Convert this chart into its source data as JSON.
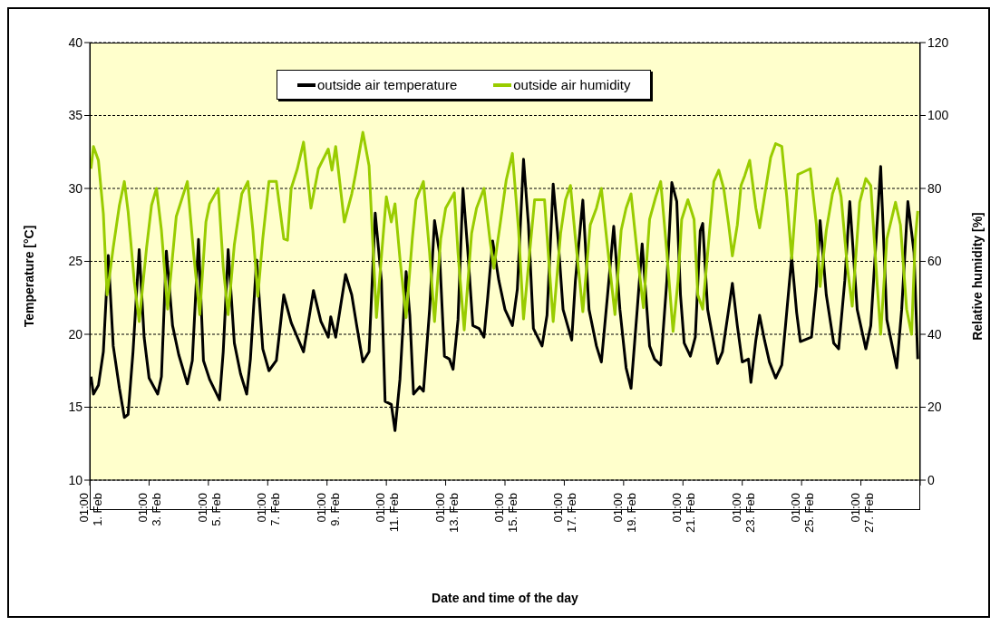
{
  "chart_data": {
    "type": "line",
    "xlabel": "Date and time of the day",
    "ylabel": "Temperature [°C]",
    "y2label": "Relative humidity [%]",
    "xlim": [
      "--02-01T01:00",
      "--03-01T01:00"
    ],
    "xticks": [
      {
        "value": "--02-01T01:00",
        "label": "01:00 1. Feb"
      },
      {
        "value": "--02-03T01:00",
        "label": "01:00 3. Feb"
      },
      {
        "value": "--02-05T01:00",
        "label": "01:00 5. Feb"
      },
      {
        "value": "--02-07T01:00",
        "label": "01:00 7. Feb"
      },
      {
        "value": "--02-09T01:00",
        "label": "01:00 9. Feb"
      },
      {
        "value": "--02-11T01:00",
        "label": "01:00 11. Feb"
      },
      {
        "value": "--02-13T01:00",
        "label": "01:00 13. Feb"
      },
      {
        "value": "--02-15T01:00",
        "label": "01:00 15. Feb"
      },
      {
        "value": "--02-17T01:00",
        "label": "01:00 17. Feb"
      },
      {
        "value": "--02-19T01:00",
        "label": "01:00 19. Feb"
      },
      {
        "value": "--02-21T01:00",
        "label": "01:00 21. Feb"
      },
      {
        "value": "--02-23T01:00",
        "label": "01:00 23. Feb"
      },
      {
        "value": "--02-25T01:00",
        "label": "01:00 25. Feb"
      },
      {
        "value": "--02-27T01:00",
        "label": "01:00 27. Feb"
      },
      {
        "value": "--03-01T01:00",
        "label": null
      }
    ],
    "ylim": [
      10,
      40
    ],
    "yticks": [
      10,
      15,
      20,
      25,
      30,
      35,
      40
    ],
    "y2lim": [
      0,
      120
    ],
    "y2ticks": [
      0,
      20,
      40,
      60,
      80,
      100,
      120
    ],
    "grid": "y",
    "legend": "top",
    "marker": "none",
    "line_style": "solid",
    "series": [
      {
        "name": "outside air temperature",
        "color": "#000000",
        "x": [
          "--02-01T02:00",
          "--02-01T04:00",
          "--02-01T08:00",
          "--02-01T12:00",
          "--02-01T16:00",
          "--02-01T20:00",
          "--02-02T01:00",
          "--02-02T05:00",
          "--02-02T08:00",
          "--02-02T12:00",
          "--02-02T17:00",
          "--02-02T21:00",
          "--02-03T01:00",
          "--02-03T08:00",
          "--02-03T11:00",
          "--02-03T15:00",
          "--02-03T20:00",
          "--02-04T01:00",
          "--02-04T08:00",
          "--02-04T12:00",
          "--02-04T17:00",
          "--02-04T21:00",
          "--02-05T02:00",
          "--02-05T10:00",
          "--02-05T13:00",
          "--02-05T17:00",
          "--02-05T22:00",
          "--02-06T03:00",
          "--02-06T08:00",
          "--02-06T11:00",
          "--02-06T16:00",
          "--02-06T21:00",
          "--02-07T02:00",
          "--02-07T08:00",
          "--02-07T14:00",
          "--02-07T20:00",
          "--02-08T01:00",
          "--02-08T06:00",
          "--02-08T14:00",
          "--02-08T20:00",
          "--02-09T02:00",
          "--02-09T04:00",
          "--02-09T08:00",
          "--02-09T16:00",
          "--02-09T21:00",
          "--02-10T01:00",
          "--02-10T06:00",
          "--02-10T11:00",
          "--02-10T16:00",
          "--02-10T21:00",
          "--02-11T00:00",
          "--02-11T05:00",
          "--02-11T08:00",
          "--02-11T12:00",
          "--02-11T17:00",
          "--02-11T20:00",
          "--02-11T23:00",
          "--02-12T04:00",
          "--02-12T07:00",
          "--02-12T12:00",
          "--02-12T16:00",
          "--02-12T20:00",
          "--02-13T00:00",
          "--02-13T04:00",
          "--02-13T07:00",
          "--02-13T11:00",
          "--02-13T15:00",
          "--02-13T19:00",
          "--02-13T23:00",
          "--02-14T04:00",
          "--02-14T08:00",
          "--02-14T11:00",
          "--02-14T15:00",
          "--02-14T20:00",
          "--02-15T01:00",
          "--02-15T07:00",
          "--02-15T11:00",
          "--02-15T16:00",
          "--02-15T20:00",
          "--02-16T00:00",
          "--02-16T07:00",
          "--02-16T11:00",
          "--02-16T16:00",
          "--02-16T20:00",
          "--02-17T00:00",
          "--02-17T07:00",
          "--02-17T10:00",
          "--02-17T16:00",
          "--02-17T21:00",
          "--02-18T03:00",
          "--02-18T07:00",
          "--02-18T12:00",
          "--02-18T17:00",
          "--02-18T22:00",
          "--02-19T03:00",
          "--02-19T07:00",
          "--02-19T12:00",
          "--02-19T16:00",
          "--02-19T22:00",
          "--02-20T02:00",
          "--02-20T07:00",
          "--02-20T12:00",
          "--02-20T16:00",
          "--02-20T20:00",
          "--02-20T23:00",
          "--02-21T02:00",
          "--02-21T07:00",
          "--02-21T11:00",
          "--02-21T15:00",
          "--02-21T17:00",
          "--02-21T21:00",
          "--02-22T02:00",
          "--02-22T05:00",
          "--02-22T09:00",
          "--02-22T14:00",
          "--02-22T17:00",
          "--02-22T21:00",
          "--02-23T01:00",
          "--02-23T06:00",
          "--02-23T08:00",
          "--02-23T12:00",
          "--02-23T15:00",
          "--02-23T19:00",
          "--02-23T23:00",
          "--02-24T04:00",
          "--02-24T09:00",
          "--02-24T12:00",
          "--02-24T17:00",
          "--02-24T21:00",
          "--02-25T00:00",
          "--02-25T09:00",
          "--02-25T13:00",
          "--02-25T16:00",
          "--02-25T21:00",
          "--02-26T03:00",
          "--02-26T07:00",
          "--02-26T12:00",
          "--02-26T16:00",
          "--02-26T22:00",
          "--02-27T05:00",
          "--02-27T09:00",
          "--02-27T17:00",
          "--02-27T22:00",
          "--02-28T06:00",
          "--02-28T10:00",
          "--02-28T15:00",
          "--02-28T20:00",
          "--02-28T23:00"
        ],
        "values": [
          17.1,
          15.9,
          16.5,
          18.8,
          25.4,
          19.2,
          16.3,
          14.3,
          14.5,
          18.8,
          25.8,
          19.8,
          17.0,
          15.9,
          17.1,
          25.7,
          20.6,
          18.6,
          16.6,
          18.2,
          26.5,
          18.2,
          16.9,
          15.5,
          18.8,
          25.8,
          19.4,
          17.3,
          15.9,
          18.3,
          25.1,
          19.0,
          17.5,
          18.2,
          22.7,
          20.8,
          19.8,
          18.8,
          23.0,
          20.9,
          19.8,
          21.2,
          19.8,
          24.1,
          22.7,
          20.6,
          18.1,
          18.8,
          28.3,
          23.7,
          15.4,
          15.2,
          13.4,
          16.9,
          24.3,
          21.3,
          15.9,
          16.4,
          16.1,
          21.7,
          27.8,
          25.6,
          18.5,
          18.3,
          17.6,
          21.0,
          30.0,
          25.6,
          20.6,
          20.4,
          19.8,
          22.5,
          26.4,
          23.7,
          21.7,
          20.6,
          23.1,
          32.0,
          27.5,
          20.4,
          19.2,
          21.3,
          30.3,
          26.5,
          21.7,
          19.6,
          23.7,
          29.2,
          21.7,
          19.2,
          18.1,
          22.7,
          27.4,
          21.7,
          17.7,
          16.3,
          21.7,
          26.2,
          19.2,
          18.3,
          17.9,
          23.7,
          30.4,
          29.1,
          22.7,
          19.4,
          18.5,
          19.8,
          27.1,
          27.6,
          21.7,
          19.4,
          18.0,
          18.8,
          21.7,
          23.5,
          20.6,
          18.1,
          18.3,
          16.7,
          19.6,
          21.3,
          19.6,
          18.1,
          17.0,
          17.9,
          20.6,
          25.3,
          21.5,
          19.5,
          19.8,
          23.3,
          27.8,
          22.7,
          19.4,
          19.0,
          23.7,
          29.1,
          21.7,
          19.0,
          20.6,
          31.5,
          21.0,
          17.7,
          21.7,
          29.1,
          25.6,
          18.3
        ]
      },
      {
        "name": "outside air humidity",
        "color": "#99cc00",
        "axis": "y2",
        "x": [
          "--02-01T02:00",
          "--02-01T04:00",
          "--02-01T08:00",
          "--02-01T12:00",
          "--02-01T15:00",
          "--02-01T20:00",
          "--02-02T01:00",
          "--02-02T05:00",
          "--02-02T08:00",
          "--02-02T13:00",
          "--02-02T17:00",
          "--02-02T23:00",
          "--02-03T03:00",
          "--02-03T07:00",
          "--02-03T11:00",
          "--02-03T16:00",
          "--02-03T23:00",
          "--02-04T08:00",
          "--02-04T13:00",
          "--02-04T18:00",
          "--02-04T23:00",
          "--02-05T02:00",
          "--02-05T09:00",
          "--02-05T13:00",
          "--02-05T17:00",
          "--02-05T22:00",
          "--02-06T04:00",
          "--02-06T09:00",
          "--02-06T13:00",
          "--02-06T17:00",
          "--02-06T21:00",
          "--02-07T02:00",
          "--02-07T08:00",
          "--02-07T14:00",
          "--02-07T17:00",
          "--02-07T20:00",
          "--02-08T01:00",
          "--02-08T06:00",
          "--02-08T12:00",
          "--02-08T18:00",
          "--02-09T02:00",
          "--02-09T05:00",
          "--02-09T08:00",
          "--02-09T15:00",
          "--02-09T21:00",
          "--02-10T00:00",
          "--02-10T06:00",
          "--02-10T11:00",
          "--02-10T17:00",
          "--02-10T22:00",
          "--02-11T01:00",
          "--02-11T05:00",
          "--02-11T08:00",
          "--02-11T12:00",
          "--02-11T17:00",
          "--02-11T22:00",
          "--02-12T01:00",
          "--02-12T07:00",
          "--02-12T12:00",
          "--02-12T16:00",
          "--02-12T21:00",
          "--02-13T01:00",
          "--02-13T08:00",
          "--02-13T11:00",
          "--02-13T16:00",
          "--02-13T22:00",
          "--02-14T02:00",
          "--02-14T08:00",
          "--02-14T13:00",
          "--02-14T16:00",
          "--02-14T21:00",
          "--02-15T02:00",
          "--02-15T07:00",
          "--02-15T12:00",
          "--02-15T16:00",
          "--02-15T22:00",
          "--02-16T01:00",
          "--02-16T09:00",
          "--02-16T12:00",
          "--02-16T16:00",
          "--02-16T22:00",
          "--02-17T02:00",
          "--02-17T06:00",
          "--02-17T10:00",
          "--02-17T16:00",
          "--02-17T22:00",
          "--02-18T03:00",
          "--02-18T07:00",
          "--02-18T12:00",
          "--02-18T18:00",
          "--02-18T23:00",
          "--02-19T03:00",
          "--02-19T07:00",
          "--02-19T12:00",
          "--02-19T17:00",
          "--02-19T22:00",
          "--02-20T03:00",
          "--02-20T07:00",
          "--02-20T12:00",
          "--02-20T17:00",
          "--02-20T21:00",
          "--02-21T00:00",
          "--02-21T05:00",
          "--02-21T10:00",
          "--02-21T13:00",
          "--02-21T17:00",
          "--02-21T22:00",
          "--02-22T02:00",
          "--02-22T06:00",
          "--02-22T10:00",
          "--02-22T14:00",
          "--02-22T17:00",
          "--02-22T21:00",
          "--02-23T00:00",
          "--02-23T03:00",
          "--02-23T07:00",
          "--02-23T12:00",
          "--02-23T15:00",
          "--02-23T20:00",
          "--02-24T00:00",
          "--02-24T04:00",
          "--02-24T09:00",
          "--02-24T13:00",
          "--02-24T17:00",
          "--02-24T22:00",
          "--02-25T03:00",
          "--02-25T08:00",
          "--02-25T13:00",
          "--02-25T16:00",
          "--02-25T21:00",
          "--02-26T02:00",
          "--02-26T06:00",
          "--02-26T09:00",
          "--02-26T14:00",
          "--02-26T18:00",
          "--02-27T00:00",
          "--02-27T05:00",
          "--02-27T09:00",
          "--02-27T14:00",
          "--02-27T17:00",
          "--02-27T22:00",
          "--02-28T05:00",
          "--02-28T09:00",
          "--02-28T14:00",
          "--02-28T18:00",
          "--02-28T21:00",
          "--02-28T23:00"
        ],
        "values": [
          85.4,
          91.5,
          87.7,
          73.1,
          50.8,
          63.8,
          75.4,
          81.9,
          73.8,
          54.6,
          43.5,
          63.8,
          75.4,
          80,
          68.5,
          46.9,
          72.3,
          81.9,
          62.3,
          45.4,
          70.8,
          75.8,
          80,
          58.5,
          45.4,
          64.6,
          78.5,
          81.9,
          68.5,
          50.4,
          66.2,
          81.9,
          81.9,
          66.2,
          65.8,
          80,
          85.4,
          92.7,
          74.6,
          85.4,
          90.8,
          85,
          91.5,
          70.8,
          78.5,
          83.8,
          95.4,
          86.2,
          44.6,
          65.4,
          77.7,
          70.8,
          75.8,
          60.8,
          44.6,
          66.2,
          76.9,
          81.9,
          62.3,
          43.5,
          66.2,
          74.6,
          78.8,
          62.3,
          41.2,
          67.7,
          74.6,
          80,
          65.4,
          58.1,
          70,
          82.3,
          89.6,
          68.5,
          44.2,
          66.2,
          76.9,
          76.9,
          62.3,
          43.5,
          67.7,
          76.9,
          80.8,
          66.2,
          46.2,
          70,
          74.6,
          80,
          63.8,
          45.4,
          68.5,
          74.6,
          78.5,
          62.3,
          47.3,
          71.5,
          77.7,
          81.9,
          62.3,
          40.8,
          54.6,
          71.5,
          76.9,
          71.5,
          50.8,
          46.9,
          66.2,
          81.9,
          85,
          80,
          70,
          61.5,
          70,
          80.8,
          83.5,
          87.7,
          74.6,
          69.2,
          80,
          88.5,
          92.3,
          91.5,
          77.7,
          60.8,
          83.8,
          84.6,
          85.4,
          70,
          53.1,
          68.5,
          78.5,
          82.7,
          77.7,
          58.5,
          47.7,
          76.2,
          82.7,
          80.8,
          54.6,
          40,
          66.2,
          76.2,
          70,
          46.9,
          40,
          66.2,
          73.8
        ]
      }
    ]
  }
}
